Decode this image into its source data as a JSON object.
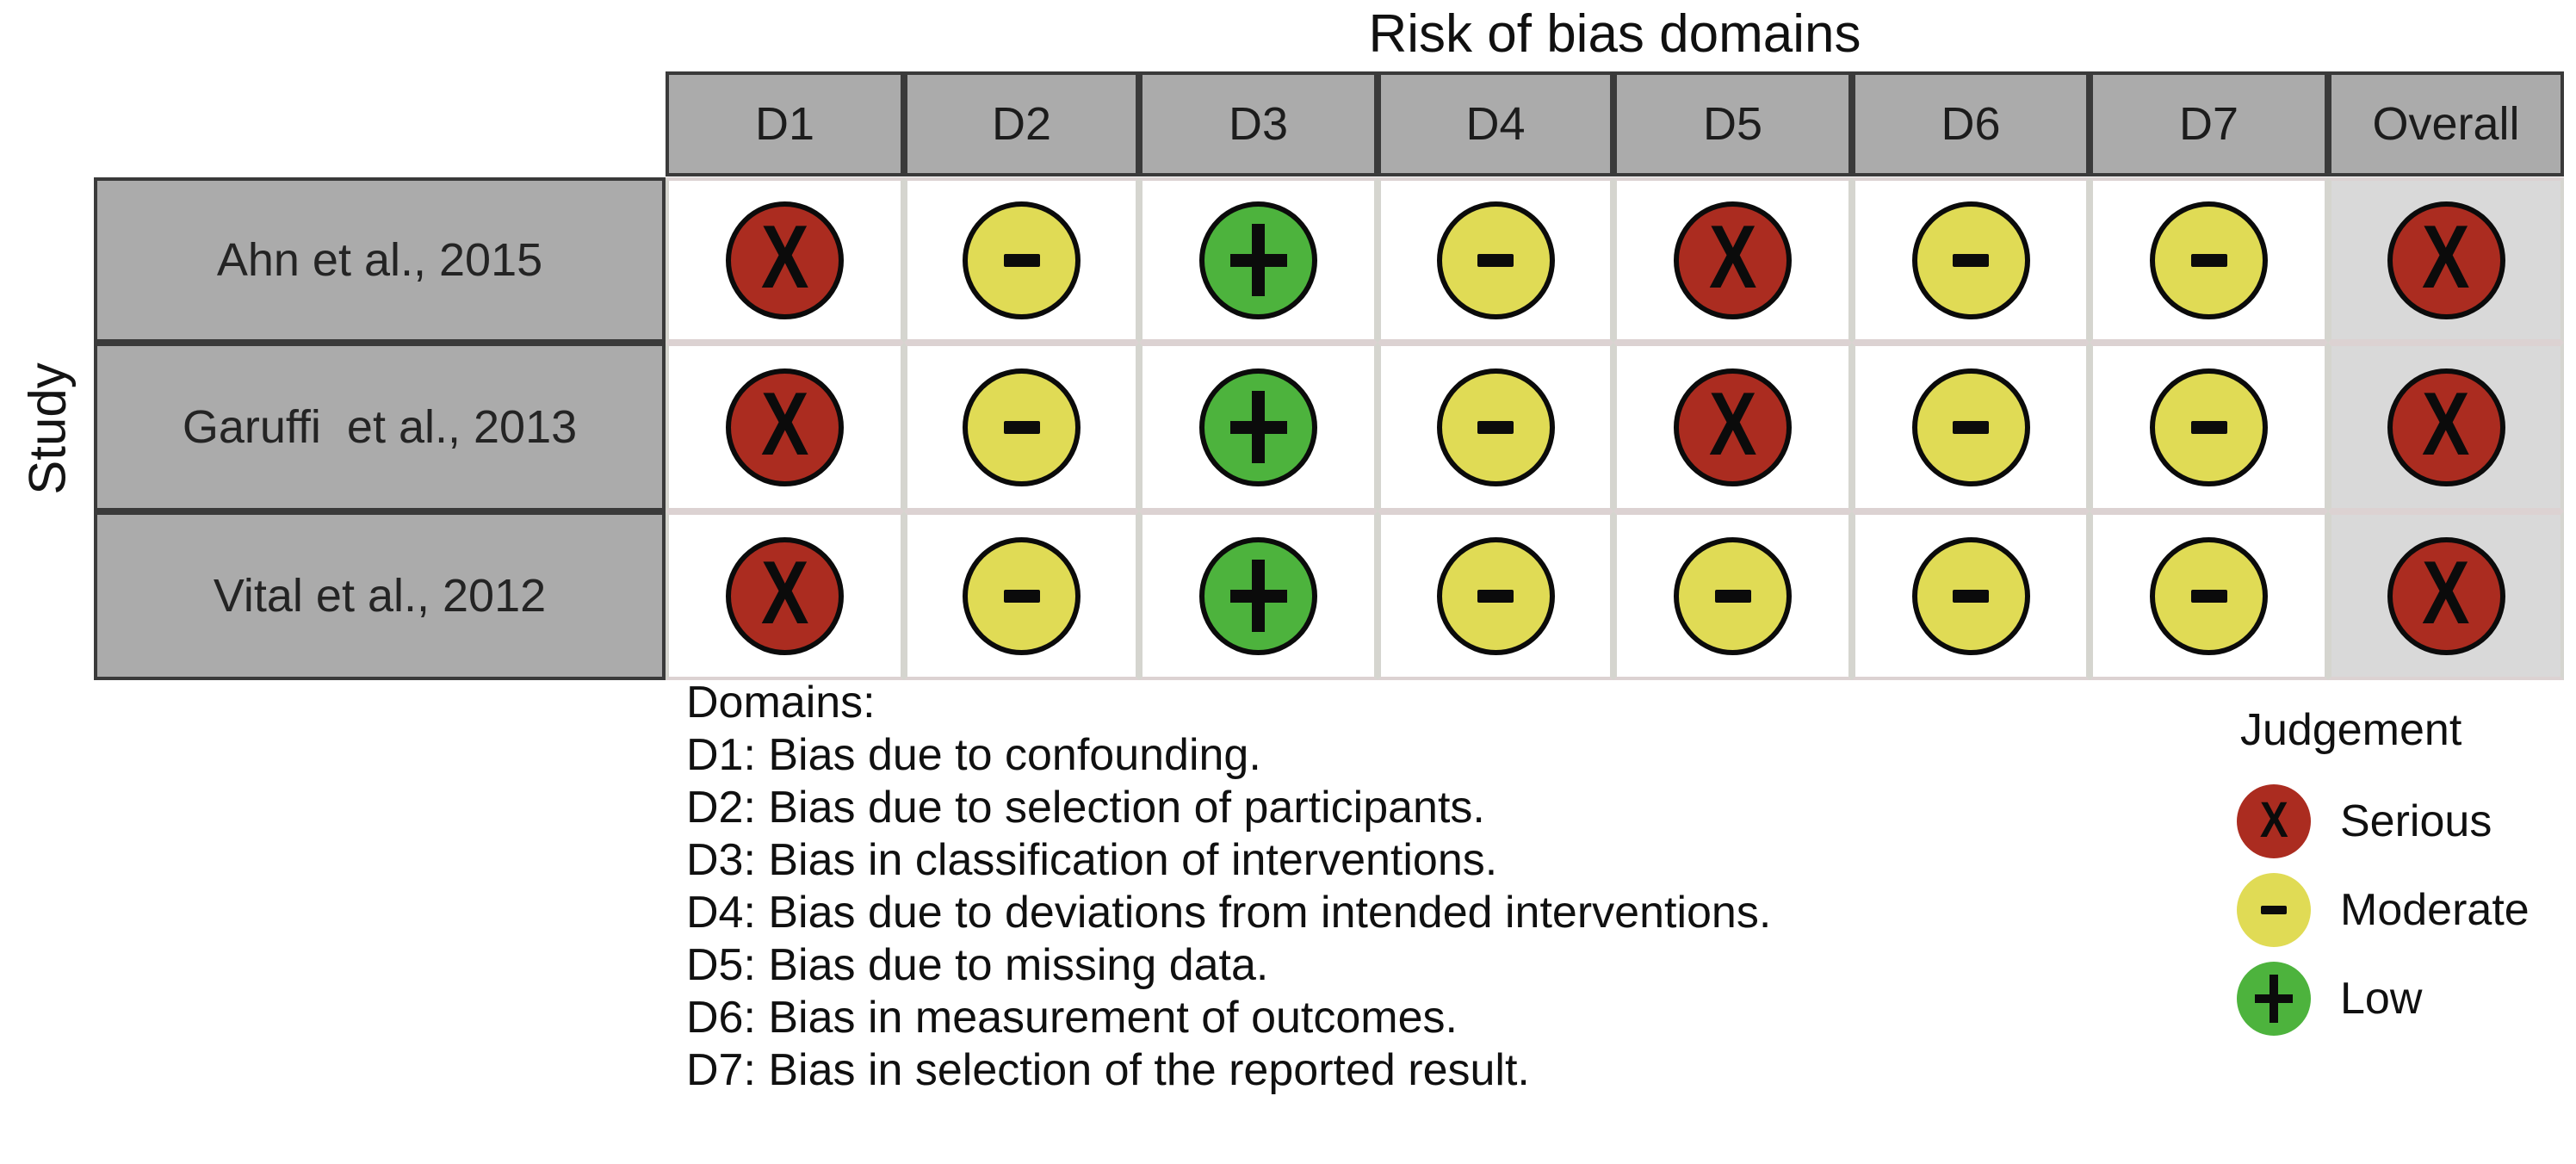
{
  "figure": {
    "title": "Risk of bias domains",
    "y_axis_label": "Study"
  },
  "chart_data": {
    "type": "heatmap",
    "title": "Risk of bias domains",
    "ylabel": "Study",
    "columns": [
      "D1",
      "D2",
      "D3",
      "D4",
      "D5",
      "D6",
      "D7",
      "Overall"
    ],
    "rows": [
      {
        "study": "Ahn et al., 2015",
        "judgements": [
          "serious",
          "moderate",
          "low",
          "moderate",
          "serious",
          "moderate",
          "moderate",
          "serious"
        ]
      },
      {
        "study": "Garuffi  et al., 2013",
        "judgements": [
          "serious",
          "moderate",
          "low",
          "moderate",
          "serious",
          "moderate",
          "moderate",
          "serious"
        ]
      },
      {
        "study": "Vital et al., 2012",
        "judgements": [
          "serious",
          "moderate",
          "low",
          "moderate",
          "moderate",
          "moderate",
          "moderate",
          "serious"
        ]
      }
    ]
  },
  "judgement_styles": {
    "serious": {
      "label": "Serious",
      "symbol": "X",
      "color": "#ab2c20"
    },
    "moderate": {
      "label": "Moderate",
      "symbol": "-",
      "color": "#e0db55"
    },
    "low": {
      "label": "Low",
      "symbol": "+",
      "color": "#4db33d"
    }
  },
  "legend": {
    "title": "Judgement",
    "items": [
      {
        "key": "serious",
        "label": "Serious"
      },
      {
        "key": "moderate",
        "label": "Moderate"
      },
      {
        "key": "low",
        "label": "Low"
      }
    ]
  },
  "footnotes": {
    "heading": "Domains:",
    "items": [
      "D1: Bias due to confounding.",
      "D2: Bias due to selection of participants.",
      "D3: Bias in classification of interventions.",
      "D4: Bias due to deviations from intended interventions.",
      "D5: Bias due to missing data.",
      "D6: Bias in measurement of outcomes.",
      "D7: Bias in selection of the reported result."
    ]
  }
}
